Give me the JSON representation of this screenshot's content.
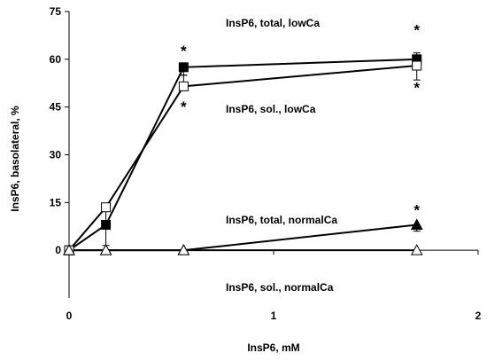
{
  "chart_data": {
    "type": "line",
    "title": "",
    "xlabel": "InsP6, mM",
    "ylabel": "InsP6, basolateral, %",
    "xlim": [
      0,
      2
    ],
    "ylim": [
      -15,
      75
    ],
    "xticks": [
      0,
      1,
      2
    ],
    "yticks": [
      0,
      15,
      30,
      45,
      60,
      75
    ],
    "grid": false,
    "legend": "none",
    "significance_marker": "*",
    "series": [
      {
        "name": "InsP6, total, lowCa",
        "marker": "filled-square",
        "color": "#000000",
        "x": [
          0,
          0.18,
          0.56,
          1.7
        ],
        "y": [
          0,
          8,
          57.5,
          60
        ],
        "error": [
          0,
          0,
          2.5,
          6.5
        ],
        "significant": [
          false,
          false,
          true,
          true
        ]
      },
      {
        "name": "InsP6, sol., lowCa",
        "marker": "open-square",
        "color": "#000000",
        "x": [
          0,
          0.18,
          0.56,
          1.7
        ],
        "y": [
          0,
          13.5,
          51.5,
          58
        ],
        "error": [
          0,
          12,
          3.5,
          4
        ],
        "significant": [
          false,
          false,
          true,
          true
        ]
      },
      {
        "name": "InsP6, total, normalCa",
        "marker": "filled-triangle",
        "color": "#000000",
        "x": [
          0,
          0.18,
          0.56,
          1.7
        ],
        "y": [
          0,
          0,
          0,
          8
        ],
        "error": [
          0,
          0,
          0,
          2
        ],
        "significant": [
          false,
          false,
          false,
          true
        ]
      },
      {
        "name": "InsP6, sol., normalCa",
        "marker": "open-triangle",
        "color": "#000000",
        "x": [
          0,
          0.18,
          0.56,
          1.7
        ],
        "y": [
          0,
          0,
          0,
          0
        ],
        "error": [
          0,
          0,
          0,
          0
        ],
        "significant": [
          false,
          false,
          false,
          false
        ]
      }
    ]
  }
}
